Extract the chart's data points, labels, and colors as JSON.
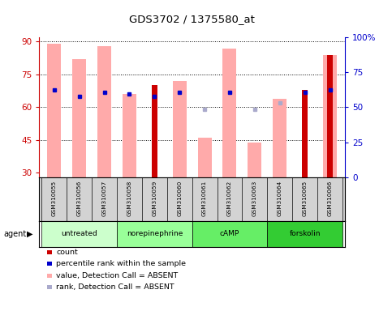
{
  "title": "GDS3702 / 1375580_at",
  "samples": [
    "GSM310055",
    "GSM310056",
    "GSM310057",
    "GSM310058",
    "GSM310059",
    "GSM310060",
    "GSM310061",
    "GSM310062",
    "GSM310063",
    "GSM310064",
    "GSM310065",
    "GSM310066"
  ],
  "pink_bar_heights": [
    89,
    82,
    88,
    66,
    null,
    72,
    46,
    87,
    44,
    64,
    null,
    84
  ],
  "red_bar_heights": [
    null,
    null,
    null,
    null,
    70,
    null,
    null,
    null,
    null,
    null,
    68,
    84
  ],
  "blue_dot_y": [
    68,
    65,
    67,
    66,
    65,
    67,
    null,
    67,
    null,
    null,
    67,
    68
  ],
  "light_blue_dot_y": [
    null,
    null,
    null,
    null,
    null,
    null,
    59,
    null,
    59,
    62,
    null,
    null
  ],
  "y_ticks_left": [
    30,
    45,
    60,
    75,
    90
  ],
  "left_axis_color": "#cc0000",
  "right_axis_color": "#0000cc",
  "pink_color": "#ffaaaa",
  "red_color": "#cc0000",
  "blue_color": "#0000cc",
  "light_blue_color": "#aaaacc",
  "group_data": [
    {
      "name": "untreated",
      "start": 0,
      "end": 2,
      "color": "#ccffcc"
    },
    {
      "name": "norepinephrine",
      "start": 3,
      "end": 5,
      "color": "#99ff99"
    },
    {
      "name": "cAMP",
      "start": 6,
      "end": 8,
      "color": "#66ee66"
    },
    {
      "name": "forskolin",
      "start": 9,
      "end": 11,
      "color": "#33cc33"
    }
  ],
  "ymin": 28,
  "ymax": 92
}
